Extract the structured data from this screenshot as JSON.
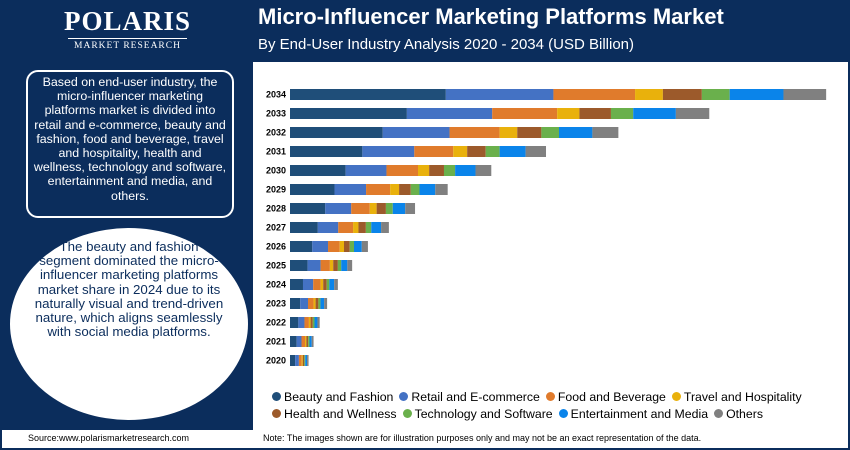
{
  "header": {
    "logo_name": "POLARIS",
    "logo_tagline": "MARKET RESEARCH",
    "title": "Micro-Influencer Marketing Platforms Market",
    "subtitle": "By End-User Industry Analysis 2020 - 2034 (USD Billion)"
  },
  "sidebar": {
    "summary": "Based on end-user industry, the micro-influencer marketing platforms market is divided into retail and e-commerce, beauty and fashion, food and beverage, travel and hospitality, health and wellness, technology and software, entertainment and media, and others.",
    "highlight": "The beauty and fashion segment dominated the micro-influencer marketing platforms market share in 2024 due to its naturally visual and trend-driven nature, which aligns seamlessly with social media platforms."
  },
  "footer": {
    "source": "Source:www.polarismarketresearch.com",
    "note": "Note: The images shown are for illustration purposes only and may not be an exact representation of the data."
  },
  "chart_data": {
    "type": "bar",
    "orientation": "horizontal",
    "stacked": true,
    "categories": [
      "2034",
      "2033",
      "2032",
      "2031",
      "2030",
      "2029",
      "2028",
      "2027",
      "2026",
      "2025",
      "2024",
      "2023",
      "2022",
      "2021",
      "2020"
    ],
    "series": [
      {
        "name": "Beauty and Fashion",
        "color": "#1f4e79",
        "values": [
          8.4,
          6.3,
          5.0,
          3.9,
          3.0,
          2.4,
          1.9,
          1.5,
          1.2,
          0.95,
          0.7,
          0.55,
          0.45,
          0.36,
          0.28
        ]
      },
      {
        "name": "Retail and E-commerce",
        "color": "#4472c4",
        "values": [
          5.8,
          4.6,
          3.6,
          2.8,
          2.2,
          1.7,
          1.4,
          1.1,
          0.85,
          0.7,
          0.55,
          0.42,
          0.33,
          0.26,
          0.2
        ]
      },
      {
        "name": "Food and Beverage",
        "color": "#e07b2c",
        "values": [
          4.4,
          3.5,
          2.7,
          2.1,
          1.7,
          1.3,
          1.0,
          0.8,
          0.63,
          0.5,
          0.4,
          0.3,
          0.24,
          0.19,
          0.15
        ]
      },
      {
        "name": "Travel and Hospitality",
        "color": "#e9b10c",
        "values": [
          1.5,
          1.2,
          0.95,
          0.75,
          0.6,
          0.48,
          0.37,
          0.29,
          0.23,
          0.18,
          0.14,
          0.11,
          0.09,
          0.07,
          0.06
        ]
      },
      {
        "name": "Health and Wellness",
        "color": "#9c5a2b",
        "values": [
          2.1,
          1.7,
          1.3,
          1.0,
          0.8,
          0.63,
          0.5,
          0.4,
          0.31,
          0.25,
          0.19,
          0.15,
          0.12,
          0.1,
          0.08
        ]
      },
      {
        "name": "Technology and Software",
        "color": "#6ab04c",
        "values": [
          1.5,
          1.2,
          0.95,
          0.75,
          0.6,
          0.47,
          0.37,
          0.29,
          0.23,
          0.18,
          0.14,
          0.11,
          0.09,
          0.07,
          0.05
        ]
      },
      {
        "name": "Entertainment and Media",
        "color": "#0a84ea",
        "values": [
          2.9,
          2.3,
          1.8,
          1.4,
          1.1,
          0.85,
          0.67,
          0.53,
          0.42,
          0.33,
          0.26,
          0.2,
          0.16,
          0.12,
          0.1
        ]
      },
      {
        "name": "Others",
        "color": "#808080",
        "values": [
          2.3,
          1.8,
          1.4,
          1.1,
          0.85,
          0.67,
          0.53,
          0.42,
          0.33,
          0.26,
          0.2,
          0.16,
          0.12,
          0.1,
          0.08
        ]
      }
    ],
    "title": "Micro-Influencer Marketing Platforms Market",
    "subtitle": "By End-User Industry Analysis 2020 - 2034 (USD Billion)",
    "xlabel": "",
    "ylabel": "",
    "xlim": [
      0,
      29
    ],
    "grid": false,
    "legend_position": "bottom"
  }
}
